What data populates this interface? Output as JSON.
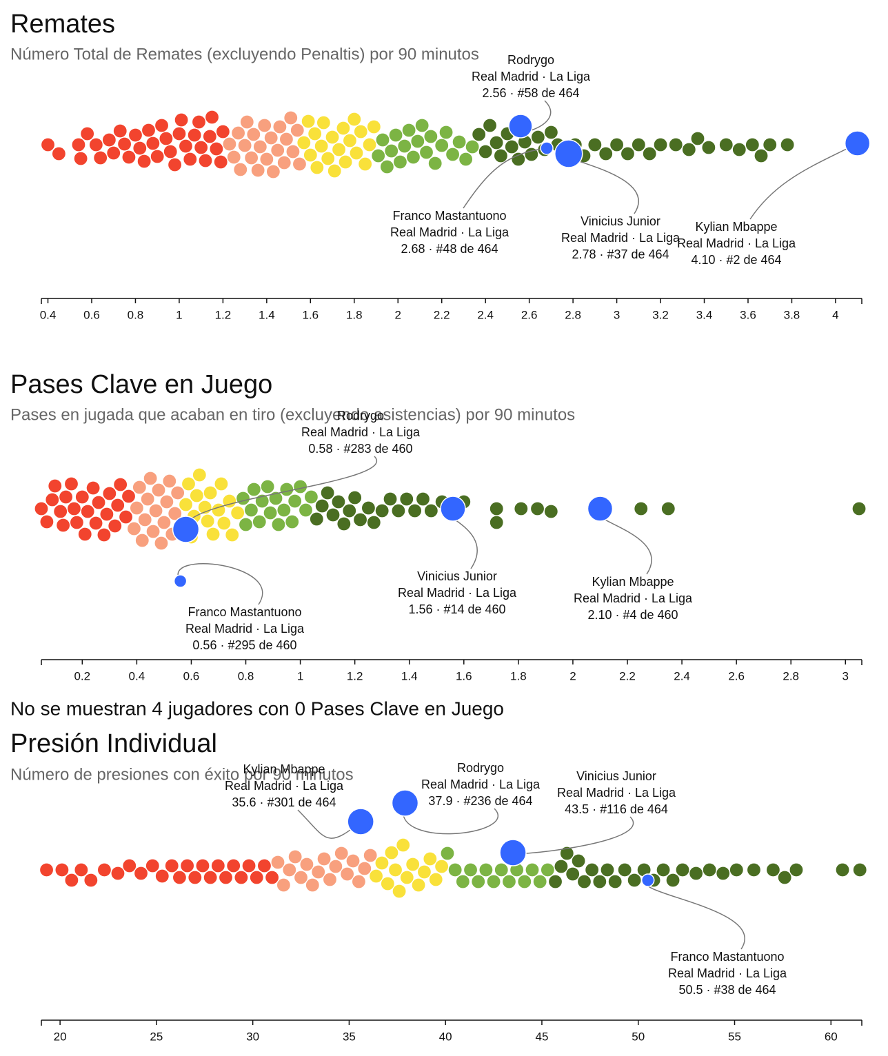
{
  "chart_data": [
    {
      "type": "beeswarm",
      "title": "Remates",
      "subtitle": "Número Total de Remates (excluyendo Penaltis) por 90 minutos",
      "xlim": [
        0.37,
        4.12
      ],
      "xticks": [
        0.4,
        0.6,
        0.8,
        1,
        1.2,
        1.4,
        1.6,
        1.8,
        2,
        2.2,
        2.4,
        2.6,
        2.8,
        3,
        3.2,
        3.4,
        3.6,
        3.8,
        4
      ],
      "highlight_color": "#3366ff",
      "series": [
        {
          "color": "#f2442e",
          "values": [
            0.4,
            0.45,
            0.54,
            0.55,
            0.58,
            0.62,
            0.64,
            0.68,
            0.7,
            0.73,
            0.75,
            0.77,
            0.8,
            0.82,
            0.84,
            0.86,
            0.88,
            0.9,
            0.92,
            0.94,
            0.96,
            0.98,
            1.0,
            1.01,
            1.03,
            1.05,
            1.07,
            1.09,
            1.1,
            1.12,
            1.14,
            1.15,
            1.17,
            1.19,
            1.2
          ]
        },
        {
          "color": "#f8a07e",
          "values": [
            1.23,
            1.25,
            1.27,
            1.28,
            1.3,
            1.31,
            1.33,
            1.34,
            1.36,
            1.37,
            1.39,
            1.4,
            1.42,
            1.43,
            1.45,
            1.46,
            1.48,
            1.49,
            1.51,
            1.52,
            1.54,
            1.55
          ]
        },
        {
          "color": "#f9e13a",
          "values": [
            1.57,
            1.59,
            1.6,
            1.62,
            1.63,
            1.65,
            1.66,
            1.68,
            1.7,
            1.71,
            1.73,
            1.75,
            1.76,
            1.78,
            1.8,
            1.81,
            1.83,
            1.85,
            1.87,
            1.89
          ]
        },
        {
          "color": "#7cb444",
          "values": [
            1.91,
            1.93,
            1.95,
            1.97,
            1.99,
            2.01,
            2.03,
            2.05,
            2.07,
            2.09,
            2.11,
            2.13,
            2.15,
            2.17,
            2.2,
            2.22,
            2.25,
            2.28,
            2.31,
            2.34
          ]
        },
        {
          "color": "#4a6e22",
          "values": [
            2.37,
            2.4,
            2.42,
            2.45,
            2.47,
            2.5,
            2.52,
            2.55,
            2.58,
            2.61,
            2.64,
            2.67,
            2.7,
            2.73,
            2.77,
            2.81,
            2.85,
            2.9,
            2.95,
            3.0,
            3.05,
            3.1,
            3.15,
            3.2,
            3.27,
            3.33,
            3.37,
            3.42,
            3.5,
            3.56,
            3.62,
            3.66,
            3.7,
            3.78,
            4.12
          ]
        }
      ],
      "highlights": [
        {
          "name": "Rodrygo",
          "team": "Real Madrid · La Liga",
          "value": 2.56,
          "value_label": "2.56 · #58 de 464"
        },
        {
          "name": "Franco Mastantuono",
          "team": "Real Madrid · La Liga",
          "value": 2.68,
          "value_label": "2.68 · #48 de 464"
        },
        {
          "name": "Vinicius Junior",
          "team": "Real Madrid · La Liga",
          "value": 2.78,
          "value_label": "2.78 · #37 de 464"
        },
        {
          "name": "Kylian Mbappe",
          "team": "Real Madrid · La Liga",
          "value": 4.1,
          "value_label": "4.10 · #2 de 464"
        }
      ]
    },
    {
      "type": "beeswarm",
      "title": "Pases Clave en Juego",
      "subtitle": "Pases en jugada que acaban en tiro (excluyendo asistencias) por 90 minutos",
      "note": "No se muestran 4 jugadores con 0 Pases Clave en Juego",
      "xlim": [
        0.05,
        3.06
      ],
      "xticks": [
        0.2,
        0.4,
        0.6,
        0.8,
        1,
        1.2,
        1.4,
        1.6,
        1.8,
        2,
        2.2,
        2.4,
        2.6,
        2.8,
        3
      ],
      "highlight_color": "#3366ff",
      "series": [
        {
          "color": "#f2442e",
          "values": [
            0.05,
            0.07,
            0.09,
            0.1,
            0.12,
            0.13,
            0.14,
            0.16,
            0.17,
            0.18,
            0.2,
            0.21,
            0.22,
            0.24,
            0.25,
            0.26,
            0.28,
            0.29,
            0.3,
            0.32,
            0.33,
            0.34,
            0.36,
            0.37
          ]
        },
        {
          "color": "#f8a07e",
          "values": [
            0.39,
            0.4,
            0.41,
            0.42,
            0.43,
            0.44,
            0.45,
            0.46,
            0.47,
            0.48,
            0.49,
            0.5,
            0.51,
            0.52,
            0.53,
            0.54,
            0.55
          ]
        },
        {
          "color": "#f9e13a",
          "values": [
            0.57,
            0.58,
            0.59,
            0.6,
            0.61,
            0.62,
            0.63,
            0.65,
            0.66,
            0.67,
            0.68,
            0.7,
            0.71,
            0.72,
            0.74,
            0.75,
            0.77
          ]
        },
        {
          "color": "#7cb444",
          "values": [
            0.79,
            0.8,
            0.82,
            0.83,
            0.85,
            0.86,
            0.88,
            0.89,
            0.91,
            0.92,
            0.94,
            0.95,
            0.97,
            0.98,
            1.0,
            1.02,
            1.04
          ]
        },
        {
          "color": "#4a6e22",
          "values": [
            1.06,
            1.08,
            1.1,
            1.12,
            1.14,
            1.16,
            1.18,
            1.2,
            1.22,
            1.25,
            1.27,
            1.3,
            1.33,
            1.36,
            1.39,
            1.42,
            1.45,
            1.48,
            1.52,
            1.56,
            1.6,
            1.72,
            1.72,
            1.81,
            1.87,
            1.92,
            2.25,
            2.35,
            3.05
          ]
        }
      ],
      "highlights": [
        {
          "name": "Rodrygo",
          "team": "Real Madrid · La Liga",
          "value": 0.58,
          "value_label": "0.58 · #283 de 460"
        },
        {
          "name": "Franco Mastantuono",
          "team": "Real Madrid · La Liga",
          "value": 0.56,
          "value_label": "0.56 · #295 de 460"
        },
        {
          "name": "Vinicius Junior",
          "team": "Real Madrid · La Liga",
          "value": 1.56,
          "value_label": "1.56 · #14 de 460"
        },
        {
          "name": "Kylian Mbappe",
          "team": "Real Madrid · La Liga",
          "value": 2.1,
          "value_label": "2.10 · #4 de 460"
        }
      ]
    },
    {
      "type": "beeswarm",
      "title": "Presión Individual",
      "subtitle": "Número de presiones con éxito por 90 minutos",
      "xlim": [
        19.03,
        61.6
      ],
      "xticks": [
        20,
        25,
        30,
        35,
        40,
        45,
        50,
        55,
        60
      ],
      "highlight_color": "#3366ff",
      "series": [
        {
          "color": "#f2442e",
          "values": [
            19.3,
            20.1,
            20.6,
            21.1,
            21.6,
            22.3,
            23.0,
            23.6,
            24.2,
            24.8,
            25.3,
            25.8,
            26.2,
            26.6,
            27.0,
            27.4,
            27.8,
            28.2,
            28.6,
            29.0,
            29.4,
            29.8,
            30.2,
            30.6,
            31.0
          ]
        },
        {
          "color": "#f8a07e",
          "values": [
            31.3,
            31.6,
            31.9,
            32.2,
            32.5,
            32.8,
            33.1,
            33.4,
            33.7,
            34.0,
            34.3,
            34.6,
            34.9,
            35.2,
            35.5,
            35.8,
            36.1
          ]
        },
        {
          "color": "#f9e13a",
          "values": [
            36.4,
            36.7,
            37.0,
            37.2,
            37.4,
            37.6,
            37.8,
            38.0,
            38.3,
            38.6,
            38.9,
            39.2,
            39.5,
            39.8
          ]
        },
        {
          "color": "#7cb444",
          "values": [
            40.1,
            40.5,
            40.9,
            41.3,
            41.7,
            42.1,
            42.5,
            42.9,
            43.3,
            43.7,
            44.1,
            44.5,
            44.9,
            45.3
          ]
        },
        {
          "color": "#4a6e22",
          "values": [
            45.7,
            46.0,
            46.3,
            46.6,
            46.9,
            47.2,
            47.6,
            48.0,
            48.4,
            48.8,
            49.3,
            49.8,
            50.3,
            50.8,
            51.3,
            51.8,
            52.3,
            53.0,
            53.7,
            54.4,
            55.1,
            56.0,
            57.0,
            57.6,
            58.2,
            60.6,
            61.5
          ]
        }
      ],
      "highlights": [
        {
          "name": "Kylian Mbappe",
          "team": "Real Madrid · La Liga",
          "value": 35.6,
          "value_label": "35.6 · #301 de 464"
        },
        {
          "name": "Rodrygo",
          "team": "Real Madrid · La Liga",
          "value": 37.9,
          "value_label": "37.9 · #236 de 464"
        },
        {
          "name": "Vinicius Junior",
          "team": "Real Madrid · La Liga",
          "value": 43.5,
          "value_label": "43.5 · #116 de 464"
        },
        {
          "name": "Franco Mastantuono",
          "team": "Real Madrid · La Liga",
          "value": 50.5,
          "value_label": "50.5 · #38 de 464"
        }
      ]
    }
  ]
}
